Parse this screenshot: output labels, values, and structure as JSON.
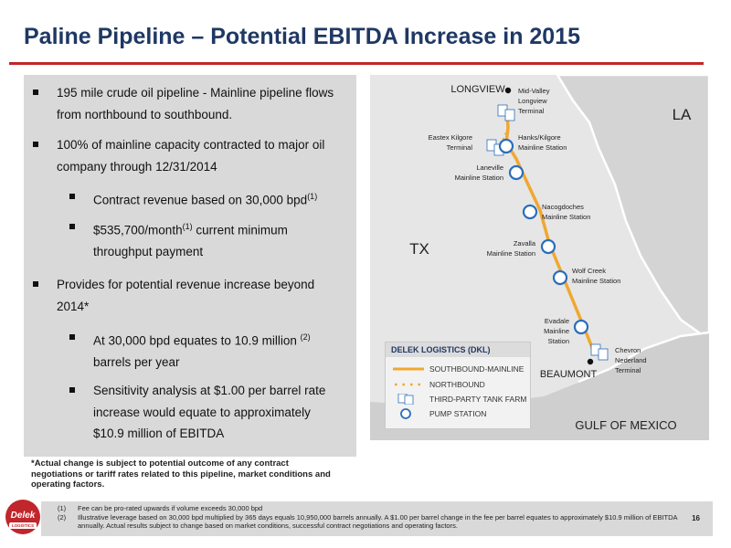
{
  "title": "Paline Pipeline – Potential EBITDA Increase in 2015",
  "bullets": [
    {
      "level": 1,
      "text": "195 mile crude oil pipeline - Mainline pipeline flows from northbound to southbound."
    },
    {
      "level": 1,
      "text": "100% of mainline capacity contracted to major oil company through 12/31/2014"
    },
    {
      "level": 2,
      "text": "Contract revenue based on 30,000 bpd",
      "sup": "(1)"
    },
    {
      "level": 2,
      "text_before": "$535,700/month",
      "sup": "(1)",
      "text_after": " current minimum throughput payment"
    },
    {
      "level": 1,
      "text": "Provides for potential revenue increase beyond 2014*"
    },
    {
      "level": 2,
      "text_before": "At 30,000 bpd equates to 10.9 million ",
      "sup": "(2)",
      "text_after": " barrels per year"
    },
    {
      "level": 2,
      "text": "Sensitivity analysis at $1.00 per barrel rate increase would equate to approximately $10.9 million of EBITDA"
    }
  ],
  "footnote_star": "*Actual change is subject to potential outcome of any contract negotiations or tariff rates related to this pipeline, market conditions and operating factors.",
  "footnotes": [
    {
      "num": "(1)",
      "text": "Fee can be pro-rated upwards if volume exceeds 30,000 bpd"
    },
    {
      "num": "(2)",
      "text": "Illustrative leverage based on 30,000 bpd multiplied by 365 days equals 10,950,000 barrels annually. A $1.00 per barrel change in the fee per barrel equates to approximately $10.9 million of EBITDA annually.  Actual results subject to change based on market conditions, successful contract negotiations and operating factors."
    }
  ],
  "page_number": "16",
  "logo": {
    "word": "Delek",
    "sub": "LOGISTICS"
  },
  "map": {
    "regions": {
      "tx": "TX",
      "la": "LA",
      "gulf": "GULF OF MEXICO"
    },
    "cities": {
      "longview": "LONGVIEW",
      "beaumont": "BEAUMONT"
    },
    "stations": {
      "mid_valley": [
        "Mid-Valley",
        "Longview",
        "Terminal"
      ],
      "eastex": [
        "Eastex Kilgore",
        "Terminal"
      ],
      "hanks": [
        "Hanks/Kilgore",
        "Mainline Station"
      ],
      "laneville": [
        "Laneville",
        "Mainline Station"
      ],
      "nacogdoches": [
        "Nacogdoches",
        "Mainline Station"
      ],
      "zavalla": [
        "Zavalla",
        "Mainline Station"
      ],
      "wolf_creek": [
        "Wolf Creek",
        "Mainline Station"
      ],
      "evadale": [
        "Evadale",
        "Mainline",
        "Station"
      ],
      "chevron": [
        "Chevron",
        "Nederland",
        "Terminal"
      ]
    },
    "legend": {
      "title": "DELEK LOGISTICS (DKL)",
      "items": [
        "SOUTHBOUND-MAINLINE",
        "NORTHBOUND",
        "THIRD-PARTY TANK FARM",
        "PUMP STATION"
      ]
    },
    "colors": {
      "pipeline": "#f0a830",
      "pump_station": "#2a6ebb",
      "background": "#e6e6e6",
      "border": "#ffffff"
    }
  }
}
